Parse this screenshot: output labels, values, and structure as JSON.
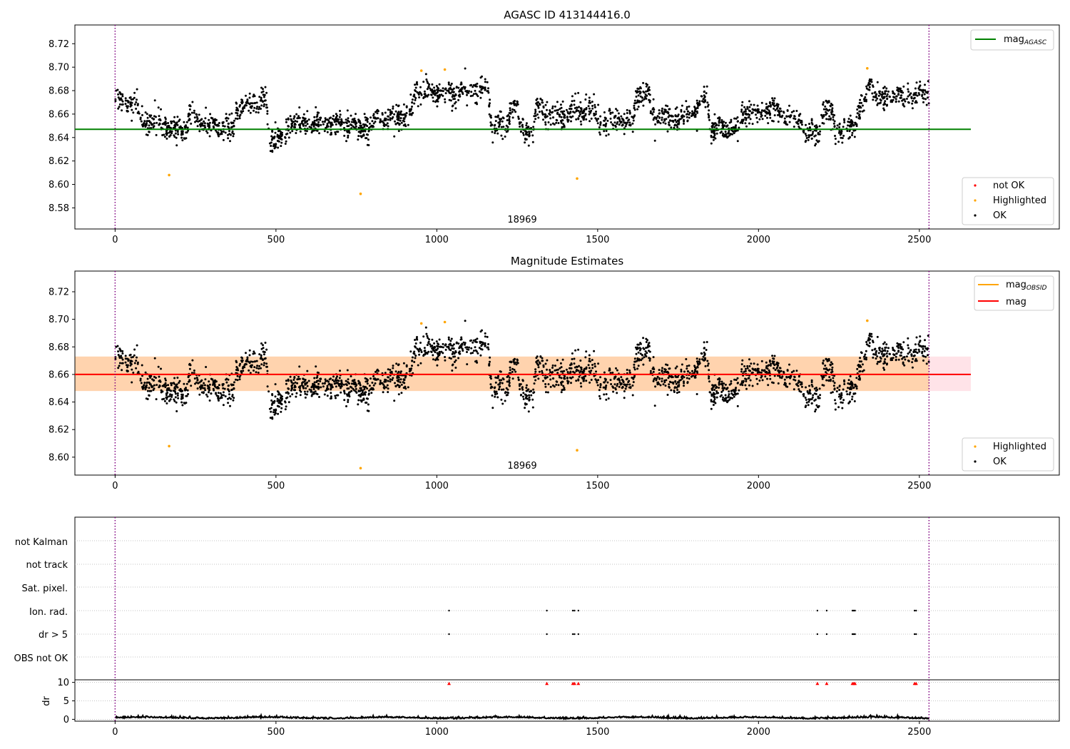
{
  "chart_data": [
    {
      "type": "scatter",
      "title": "AGASC ID 413144416.0",
      "annotation": "18969",
      "xlim": [
        -125,
        2935
      ],
      "ylim": [
        8.562,
        8.736
      ],
      "x_ticks": [
        0,
        500,
        1000,
        1500,
        2000,
        2500
      ],
      "y_ticks": [
        8.58,
        8.6,
        8.62,
        8.64,
        8.66,
        8.68,
        8.7,
        8.72
      ],
      "y_tick_decimals": 2,
      "vlines_dotted": [
        0,
        2530
      ],
      "hlines": [
        {
          "label": "mag_AGASC",
          "y": 8.647,
          "color": "#008000",
          "x_range": [
            -125,
            2660
          ]
        }
      ],
      "legends": {
        "top-right": [
          {
            "label": "mag",
            "sub": "AGASC",
            "type": "line",
            "color": "#008000"
          }
        ],
        "bottom-right": [
          {
            "label": "not OK",
            "type": "marker",
            "color": "#ff0000"
          },
          {
            "label": "Highlighted",
            "type": "marker",
            "color": "#ffa500"
          },
          {
            "label": "OK",
            "type": "marker",
            "color": "#000000"
          }
        ]
      },
      "series": [
        {
          "name": "not OK",
          "color": "#ff0000",
          "x": [],
          "y": []
        },
        {
          "name": "Highlighted",
          "color": "#ffa500",
          "x": [
            168,
            763,
            952,
            1025,
            1436,
            2338
          ],
          "y": [
            8.608,
            8.592,
            8.697,
            8.698,
            8.605,
            8.699
          ]
        }
      ],
      "ok_series": {
        "name": "OK",
        "color": "#000000",
        "x_range": [
          0,
          2530
        ],
        "count": 2500,
        "spread": 0.0065,
        "segments": [
          [
            0,
            8.671
          ],
          [
            70,
            8.668
          ],
          [
            80,
            8.655
          ],
          [
            150,
            8.652
          ],
          [
            170,
            8.646
          ],
          [
            220,
            8.646
          ],
          [
            230,
            8.657
          ],
          [
            280,
            8.654
          ],
          [
            290,
            8.649
          ],
          [
            370,
            8.65
          ],
          [
            375,
            8.665
          ],
          [
            470,
            8.673
          ],
          [
            480,
            8.637
          ],
          [
            530,
            8.643
          ],
          [
            540,
            8.652
          ],
          [
            700,
            8.652
          ],
          [
            710,
            8.65
          ],
          [
            800,
            8.649
          ],
          [
            810,
            8.656
          ],
          [
            920,
            8.66
          ],
          [
            930,
            8.68
          ],
          [
            1070,
            8.678
          ],
          [
            1160,
            8.681
          ],
          [
            1170,
            8.65
          ],
          [
            1220,
            8.65
          ],
          [
            1230,
            8.667
          ],
          [
            1250,
            8.668
          ],
          [
            1260,
            8.648
          ],
          [
            1300,
            8.644
          ],
          [
            1310,
            8.666
          ],
          [
            1370,
            8.658
          ],
          [
            1380,
            8.656
          ],
          [
            1430,
            8.664
          ],
          [
            1490,
            8.663
          ],
          [
            1500,
            8.653
          ],
          [
            1610,
            8.655
          ],
          [
            1620,
            8.677
          ],
          [
            1660,
            8.675
          ],
          [
            1670,
            8.66
          ],
          [
            1760,
            8.655
          ],
          [
            1820,
            8.668
          ],
          [
            1840,
            8.677
          ],
          [
            1850,
            8.648
          ],
          [
            1940,
            8.648
          ],
          [
            1950,
            8.66
          ],
          [
            2060,
            8.664
          ],
          [
            2090,
            8.655
          ],
          [
            2140,
            8.653
          ],
          [
            2150,
            8.642
          ],
          [
            2190,
            8.641
          ],
          [
            2200,
            8.665
          ],
          [
            2230,
            8.66
          ],
          [
            2240,
            8.645
          ],
          [
            2300,
            8.652
          ],
          [
            2310,
            8.665
          ],
          [
            2330,
            8.668
          ],
          [
            2340,
            8.684
          ],
          [
            2380,
            8.674
          ],
          [
            2480,
            8.676
          ],
          [
            2530,
            8.68
          ]
        ]
      }
    },
    {
      "type": "scatter",
      "title": "Magnitude Estimates",
      "annotation": "18969",
      "xlim": [
        -125,
        2935
      ],
      "ylim": [
        8.587,
        8.735
      ],
      "x_ticks": [
        0,
        500,
        1000,
        1500,
        2000,
        2500
      ],
      "y_ticks": [
        8.6,
        8.62,
        8.64,
        8.66,
        8.68,
        8.7,
        8.72
      ],
      "y_tick_decimals": 2,
      "vlines_dotted": [
        0,
        2530
      ],
      "bands": [
        {
          "y_range": [
            8.648,
            8.673
          ],
          "x_range": [
            -125,
            2660
          ],
          "color": "#ffc0cb",
          "opacity": 0.45
        },
        {
          "y_range": [
            8.648,
            8.673
          ],
          "x_range": [
            -125,
            2530
          ],
          "color": "#ffa500",
          "opacity": 0.25
        }
      ],
      "hlines": [
        {
          "label": "mag_OBSID",
          "y": 8.66,
          "color": "#ffa500",
          "x_range": [
            -125,
            2530
          ]
        },
        {
          "label": "mag",
          "y": 8.66,
          "color": "#ff0000",
          "x_range": [
            -125,
            2660
          ]
        }
      ],
      "legends": {
        "top-right": [
          {
            "label": "mag",
            "sub": "OBSID",
            "type": "line",
            "color": "#ffa500"
          },
          {
            "label": "mag",
            "type": "line",
            "color": "#ff0000"
          }
        ],
        "bottom-right": [
          {
            "label": "Highlighted",
            "type": "marker",
            "color": "#ffa500"
          },
          {
            "label": "OK",
            "type": "marker",
            "color": "#000000"
          }
        ]
      },
      "series": [
        {
          "name": "Highlighted",
          "color": "#ffa500",
          "x": [
            168,
            763,
            952,
            1025,
            1436,
            2338
          ],
          "y": [
            8.608,
            8.592,
            8.697,
            8.698,
            8.605,
            8.699
          ]
        }
      ],
      "ok_series": {
        "same_as_panel": 0
      }
    },
    {
      "type": "scatter",
      "title": "",
      "categories": [
        "not Kalman",
        "not track",
        "Sat. pixel.",
        "Ion. rad.",
        "dr > 5",
        "OBS not OK"
      ],
      "xlim": [
        -125,
        2935
      ],
      "vlines_dotted": [
        0,
        2530
      ],
      "series": [
        {
          "name": "not Kalman",
          "x": []
        },
        {
          "name": "not track",
          "x": []
        },
        {
          "name": "Sat. pixel.",
          "x": []
        },
        {
          "name": "Ion. rad.",
          "x": [
            1038,
            1342,
            1423,
            1428,
            1440,
            2183,
            2212,
            2292,
            2296,
            2300,
            2485,
            2490
          ]
        },
        {
          "name": "dr > 5",
          "x": [
            1038,
            1342,
            1423,
            1428,
            1440,
            2183,
            2212,
            2292,
            2296,
            2300,
            2485,
            2490
          ]
        },
        {
          "name": "OBS not OK",
          "x": []
        }
      ]
    },
    {
      "type": "line",
      "title": "",
      "ylabel": "dr",
      "xlim": [
        -125,
        2935
      ],
      "ylim": [
        -0.5,
        10.7
      ],
      "x_ticks": [
        0,
        500,
        1000,
        1500,
        2000,
        2500
      ],
      "y_ticks": [
        0,
        5,
        10
      ],
      "y_tick_decimals": 0,
      "vlines_dotted": [
        0,
        2530
      ],
      "clipped_points": {
        "color": "#ff0000",
        "y": 9.7,
        "x": [
          1038,
          1342,
          1423,
          1428,
          1440,
          2183,
          2212,
          2292,
          2296,
          2300,
          2485,
          2490
        ]
      },
      "dr_series": {
        "x_range": [
          0,
          2530
        ],
        "baseline": 0.3,
        "amplitude": 0.35
      }
    }
  ]
}
